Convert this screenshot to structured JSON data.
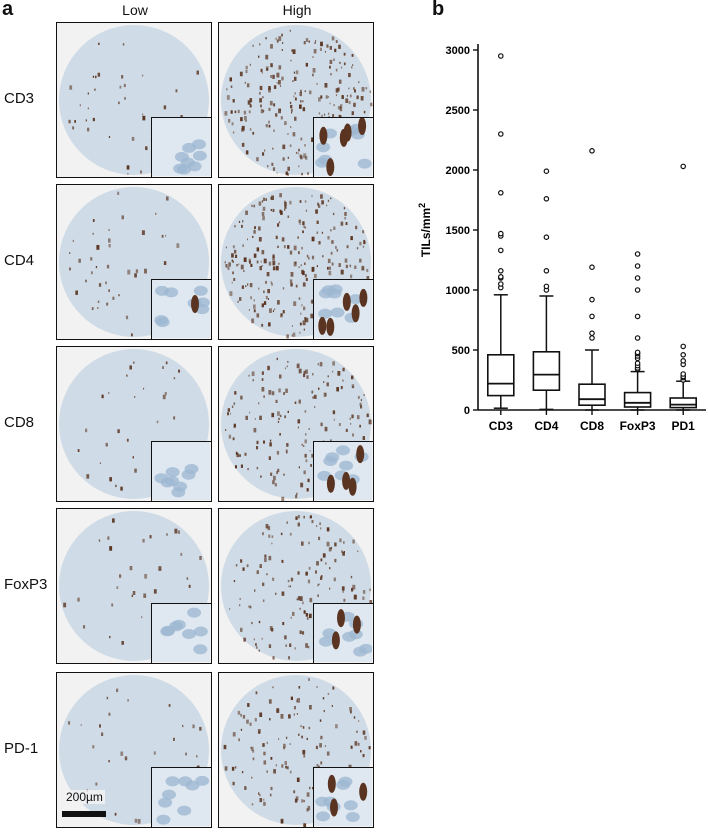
{
  "panel_a": {
    "letter": "a",
    "columns": [
      "Low",
      "High"
    ],
    "rows": [
      {
        "label": "CD3",
        "low_density": 0.08,
        "high_density": 0.85
      },
      {
        "label": "CD4",
        "low_density": 0.12,
        "high_density": 0.9
      },
      {
        "label": "CD8",
        "low_density": 0.05,
        "high_density": 0.6
      },
      {
        "label": "FoxP3",
        "low_density": 0.06,
        "high_density": 0.5
      },
      {
        "label": "PD-1",
        "low_density": 0.04,
        "high_density": 0.45
      }
    ],
    "scale_bar_label": "200µm",
    "colors": {
      "tissue": "#cfdbe6",
      "stain": "#5a3420",
      "background": "#f2f2f2"
    }
  },
  "panel_b": {
    "letter": "b"
  },
  "chart_data": {
    "type": "box",
    "title": "",
    "xlabel": "",
    "ylabel": "TILs/mm",
    "ylabel_superscript": "2",
    "ylim": [
      0,
      3000
    ],
    "yticks": [
      0,
      500,
      1000,
      1500,
      2000,
      2500,
      3000
    ],
    "categories": [
      "CD3",
      "CD4",
      "CD8",
      "FoxP3",
      "PD1"
    ],
    "boxes": [
      {
        "name": "CD3",
        "whisker_low": 15,
        "q1": 120,
        "median": 220,
        "q3": 460,
        "whisker_high": 960,
        "outliers": [
          1020,
          1050,
          1100,
          1110,
          1160,
          1330,
          1450,
          1470,
          1810,
          2300,
          2950
        ]
      },
      {
        "name": "CD4",
        "whisker_low": 5,
        "q1": 165,
        "median": 295,
        "q3": 485,
        "whisker_high": 950,
        "outliers": [
          1000,
          1030,
          1160,
          1440,
          1760,
          1990
        ]
      },
      {
        "name": "CD8",
        "whisker_low": 0,
        "q1": 40,
        "median": 90,
        "q3": 215,
        "whisker_high": 500,
        "outliers": [
          600,
          640,
          780,
          920,
          1190,
          2160
        ]
      },
      {
        "name": "FoxP3",
        "whisker_low": 0,
        "q1": 25,
        "median": 60,
        "q3": 145,
        "whisker_high": 320,
        "outliers": [
          340,
          350,
          370,
          390,
          430,
          450,
          470,
          480,
          600,
          780,
          1000,
          1100,
          1200,
          1300
        ]
      },
      {
        "name": "PD1",
        "whisker_low": 0,
        "q1": 20,
        "median": 45,
        "q3": 100,
        "whisker_high": 240,
        "outliers": [
          250,
          270,
          280,
          300,
          380,
          410,
          460,
          530,
          2030
        ]
      }
    ]
  }
}
